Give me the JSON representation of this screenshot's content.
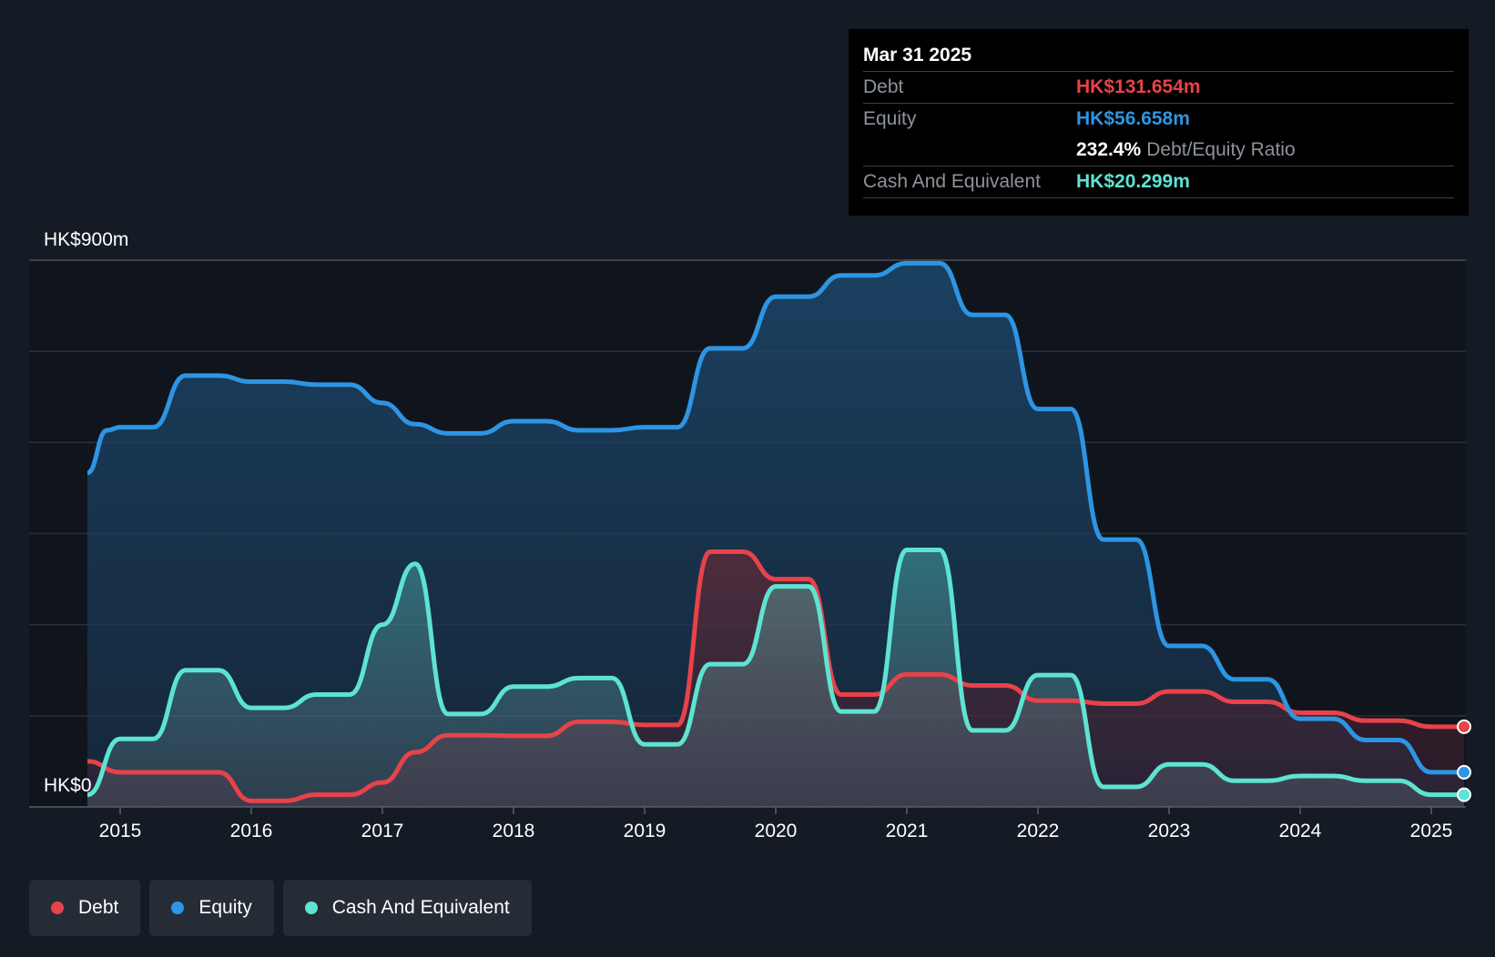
{
  "tooltip": {
    "date": "Mar 31 2025",
    "rows": [
      {
        "label": "Debt",
        "value": "HK$131.654m",
        "color": "#e8424a"
      },
      {
        "label": "Equity",
        "value": "HK$56.658m",
        "color": "#2d95e3"
      },
      {
        "label": "",
        "value": "232.4%",
        "extra": "Debt/Equity Ratio",
        "color": "#ffffff"
      },
      {
        "label": "Cash And Equivalent",
        "value": "HK$20.299m",
        "color": "#5ee3d3"
      }
    ]
  },
  "legend": [
    {
      "label": "Debt",
      "color": "#e8424a"
    },
    {
      "label": "Equity",
      "color": "#2d95e3"
    },
    {
      "label": "Cash And Equivalent",
      "color": "#5ee3d3"
    }
  ],
  "chart_data": {
    "type": "area",
    "y_top_label": "HK$900m",
    "y_bottom_label": "HK$0",
    "ylim": [
      0,
      900
    ],
    "xlim": [
      2014.75,
      2025.25
    ],
    "x_ticks": [
      2015,
      2016,
      2017,
      2018,
      2019,
      2020,
      2021,
      2022,
      2023,
      2024,
      2025
    ],
    "grid": true,
    "series": [
      {
        "name": "Equity",
        "color": "#2d95e3",
        "points": [
          [
            2014.75,
            550
          ],
          [
            2014.9,
            620
          ],
          [
            2015.0,
            625
          ],
          [
            2015.25,
            625
          ],
          [
            2015.5,
            710
          ],
          [
            2015.75,
            710
          ],
          [
            2016.0,
            700
          ],
          [
            2016.25,
            700
          ],
          [
            2016.5,
            695
          ],
          [
            2016.75,
            695
          ],
          [
            2017.0,
            665
          ],
          [
            2017.25,
            630
          ],
          [
            2017.5,
            615
          ],
          [
            2017.75,
            615
          ],
          [
            2018.0,
            635
          ],
          [
            2018.25,
            635
          ],
          [
            2018.5,
            620
          ],
          [
            2018.75,
            620
          ],
          [
            2019.0,
            625
          ],
          [
            2019.25,
            625
          ],
          [
            2019.5,
            755
          ],
          [
            2019.75,
            755
          ],
          [
            2020.0,
            840
          ],
          [
            2020.25,
            840
          ],
          [
            2020.5,
            875
          ],
          [
            2020.75,
            875
          ],
          [
            2021.0,
            895
          ],
          [
            2021.25,
            895
          ],
          [
            2021.5,
            810
          ],
          [
            2021.75,
            810
          ],
          [
            2022.0,
            655
          ],
          [
            2022.25,
            655
          ],
          [
            2022.5,
            440
          ],
          [
            2022.75,
            440
          ],
          [
            2023.0,
            265
          ],
          [
            2023.25,
            265
          ],
          [
            2023.5,
            210
          ],
          [
            2023.75,
            210
          ],
          [
            2024.0,
            145
          ],
          [
            2024.25,
            145
          ],
          [
            2024.5,
            110
          ],
          [
            2024.75,
            110
          ],
          [
            2025.0,
            57
          ],
          [
            2025.25,
            57
          ]
        ]
      },
      {
        "name": "Debt",
        "color": "#e8424a",
        "points": [
          [
            2014.75,
            75
          ],
          [
            2015.0,
            57
          ],
          [
            2015.25,
            57
          ],
          [
            2015.5,
            57
          ],
          [
            2015.75,
            57
          ],
          [
            2016.0,
            10
          ],
          [
            2016.25,
            10
          ],
          [
            2016.5,
            20
          ],
          [
            2016.75,
            20
          ],
          [
            2017.0,
            40
          ],
          [
            2017.25,
            90
          ],
          [
            2017.5,
            118
          ],
          [
            2017.75,
            118
          ],
          [
            2018.0,
            117
          ],
          [
            2018.25,
            117
          ],
          [
            2018.5,
            140
          ],
          [
            2018.75,
            140
          ],
          [
            2019.0,
            135
          ],
          [
            2019.25,
            135
          ],
          [
            2019.5,
            420
          ],
          [
            2019.75,
            420
          ],
          [
            2020.0,
            375
          ],
          [
            2020.25,
            375
          ],
          [
            2020.5,
            185
          ],
          [
            2020.75,
            185
          ],
          [
            2021.0,
            218
          ],
          [
            2021.25,
            218
          ],
          [
            2021.5,
            200
          ],
          [
            2021.75,
            200
          ],
          [
            2022.0,
            175
          ],
          [
            2022.25,
            175
          ],
          [
            2022.5,
            170
          ],
          [
            2022.75,
            170
          ],
          [
            2023.0,
            190
          ],
          [
            2023.25,
            190
          ],
          [
            2023.5,
            173
          ],
          [
            2023.75,
            173
          ],
          [
            2024.0,
            155
          ],
          [
            2024.25,
            155
          ],
          [
            2024.5,
            142
          ],
          [
            2024.75,
            142
          ],
          [
            2025.0,
            132
          ],
          [
            2025.25,
            132
          ]
        ]
      },
      {
        "name": "Cash And Equivalent",
        "color": "#5ee3d3",
        "points": [
          [
            2014.75,
            20
          ],
          [
            2015.0,
            112
          ],
          [
            2015.25,
            112
          ],
          [
            2015.5,
            225
          ],
          [
            2015.75,
            225
          ],
          [
            2016.0,
            163
          ],
          [
            2016.25,
            163
          ],
          [
            2016.5,
            185
          ],
          [
            2016.75,
            185
          ],
          [
            2017.0,
            300
          ],
          [
            2017.25,
            400
          ],
          [
            2017.5,
            153
          ],
          [
            2017.75,
            153
          ],
          [
            2018.0,
            198
          ],
          [
            2018.25,
            198
          ],
          [
            2018.5,
            212
          ],
          [
            2018.75,
            212
          ],
          [
            2019.0,
            103
          ],
          [
            2019.25,
            103
          ],
          [
            2019.5,
            235
          ],
          [
            2019.75,
            235
          ],
          [
            2020.0,
            363
          ],
          [
            2020.25,
            363
          ],
          [
            2020.5,
            157
          ],
          [
            2020.75,
            157
          ],
          [
            2021.0,
            423
          ],
          [
            2021.25,
            423
          ],
          [
            2021.5,
            126
          ],
          [
            2021.75,
            126
          ],
          [
            2022.0,
            217
          ],
          [
            2022.25,
            217
          ],
          [
            2022.5,
            33
          ],
          [
            2022.75,
            33
          ],
          [
            2023.0,
            70
          ],
          [
            2023.25,
            70
          ],
          [
            2023.5,
            43
          ],
          [
            2023.75,
            43
          ],
          [
            2024.0,
            51
          ],
          [
            2024.25,
            51
          ],
          [
            2024.5,
            43
          ],
          [
            2024.75,
            43
          ],
          [
            2025.0,
            20
          ],
          [
            2025.25,
            20
          ]
        ]
      }
    ]
  }
}
